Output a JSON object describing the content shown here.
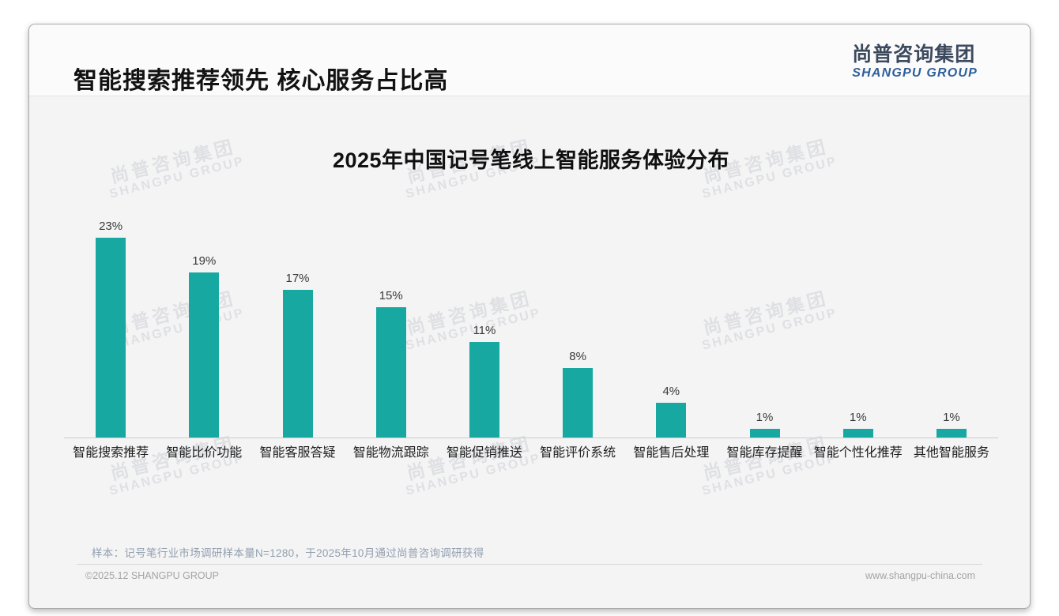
{
  "header": {
    "title": "智能搜索推荐领先 核心服务占比高"
  },
  "logo": {
    "cn": "尚普咨询集团",
    "en": "SHANGPU GROUP"
  },
  "watermark": {
    "cn": "尚普咨询集团",
    "en": "SHANGPU GROUP"
  },
  "chart_data": {
    "type": "bar",
    "title": "2025年中国记号笔线上智能服务体验分布",
    "categories": [
      "智能搜索推荐",
      "智能比价功能",
      "智能客服答疑",
      "智能物流跟踪",
      "智能促销推送",
      "智能评价系统",
      "智能售后处理",
      "智能库存提醒",
      "智能个性化推荐",
      "其他智能服务"
    ],
    "values": [
      23,
      19,
      17,
      15,
      11,
      8,
      4,
      1,
      1,
      1
    ],
    "value_labels": [
      "23%",
      "19%",
      "17%",
      "15%",
      "11%",
      "8%",
      "4%",
      "1%",
      "1%",
      "1%"
    ],
    "unit": "%",
    "bar_color": "#16a8a1",
    "xlabel": "",
    "ylabel": "",
    "ylim": [
      0,
      25
    ],
    "gridlines": false,
    "legend": false,
    "data_label_position": "above"
  },
  "footnote": "样本：记号笔行业市场调研样本量N=1280，于2025年10月通过尚普咨询调研获得",
  "footer": {
    "copyright": "©2025.12 SHANGPU GROUP",
    "website": "www.shangpu-china.com"
  }
}
